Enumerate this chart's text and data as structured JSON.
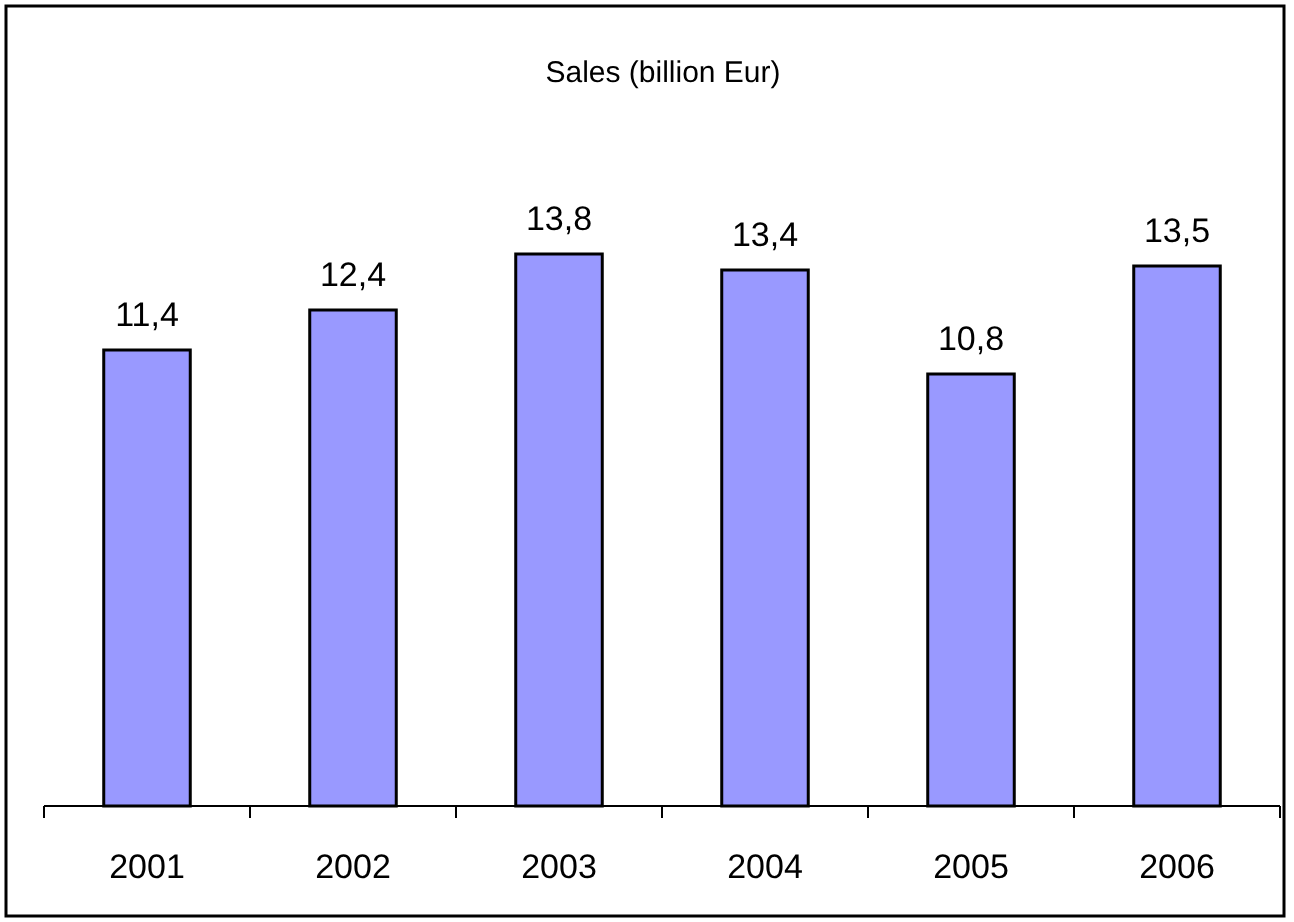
{
  "chart_data": {
    "type": "bar",
    "title": "Sales (billion Eur)",
    "categories": [
      "2001",
      "2002",
      "2003",
      "2004",
      "2005",
      "2006"
    ],
    "values": [
      11.4,
      12.4,
      13.8,
      13.4,
      10.8,
      13.5
    ],
    "value_labels": [
      "11,4",
      "12,4",
      "13,8",
      "13,4",
      "10,8",
      "13,5"
    ],
    "color": "#9999ff",
    "tick_labels": "x"
  }
}
